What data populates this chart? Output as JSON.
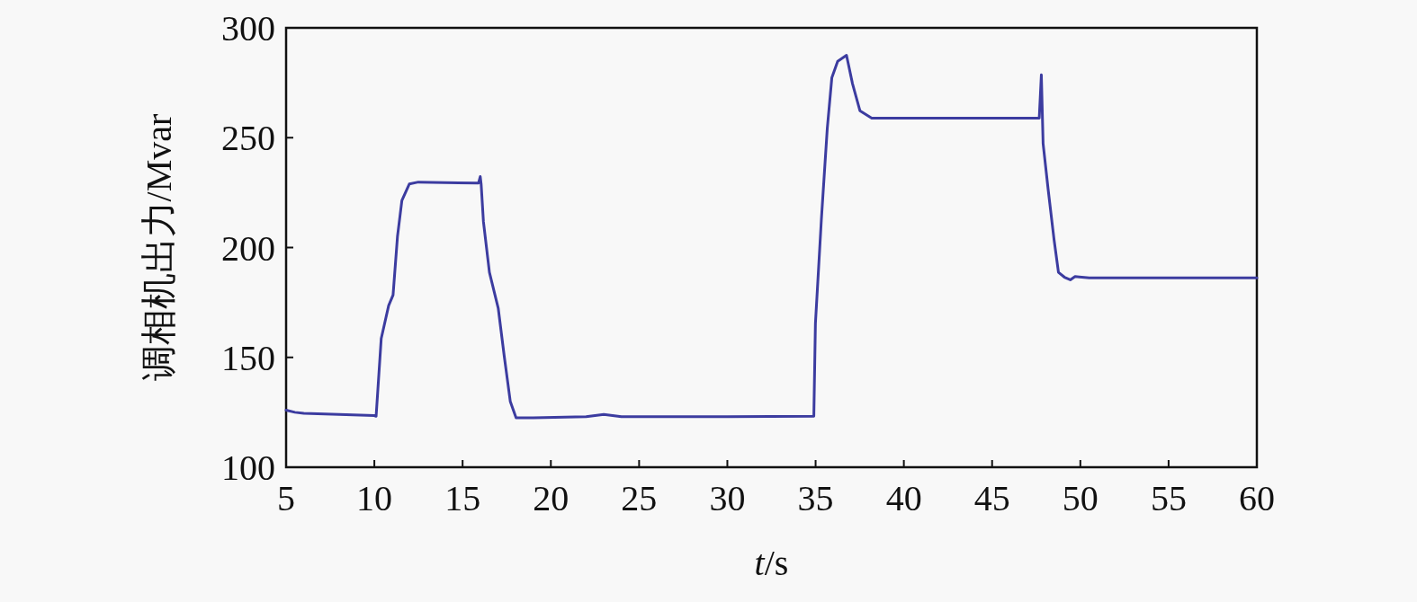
{
  "chart_data": {
    "type": "line",
    "xlabel": "*t*/s",
    "ylabel": "调相机出力/Mvar",
    "xlim": [
      5,
      60
    ],
    "ylim": [
      100,
      300
    ],
    "xticks": [
      5,
      10,
      15,
      20,
      25,
      30,
      35,
      40,
      45,
      50,
      55,
      60
    ],
    "yticks": [
      100,
      150,
      200,
      250,
      300
    ],
    "grid": false,
    "marker": "none",
    "line_style": "solid",
    "series": [
      {
        "color": "#3c3ca0",
        "x": [
          5,
          5.5,
          6,
          8,
          10,
          10.1,
          10.39,
          10.81,
          11.06,
          11.31,
          11.56,
          11.98,
          12.49,
          14,
          15.9,
          16.0,
          16.05,
          16.18,
          16.52,
          17.02,
          17.36,
          17.7,
          18.03,
          19,
          22,
          23,
          24,
          30,
          34.9,
          34.99,
          35.33,
          35.66,
          35.92,
          36.25,
          36.75,
          37.09,
          37.51,
          38.18,
          42,
          47.67,
          47.79,
          47.89,
          48.17,
          48.51,
          48.76,
          49.1,
          49.43,
          49.7,
          49.94,
          50.5,
          55,
          60
        ],
        "values": [
          126,
          125,
          124.5,
          124,
          123.5,
          123.2,
          158.6,
          173.6,
          178.4,
          205,
          221.4,
          228.9,
          229.8,
          229.5,
          229.3,
          232.3,
          229,
          211.8,
          188.7,
          172.3,
          150.5,
          130,
          122.5,
          122.5,
          123,
          124,
          123,
          123,
          123.2,
          165.5,
          213.2,
          254,
          277.3,
          284.8,
          287.5,
          274.6,
          262.3,
          258.9,
          258.9,
          258.9,
          278.6,
          247.3,
          226.8,
          203.6,
          188.7,
          186.5,
          185.3,
          186.8,
          186.6,
          186.2,
          186.2,
          186.2
        ]
      }
    ]
  }
}
